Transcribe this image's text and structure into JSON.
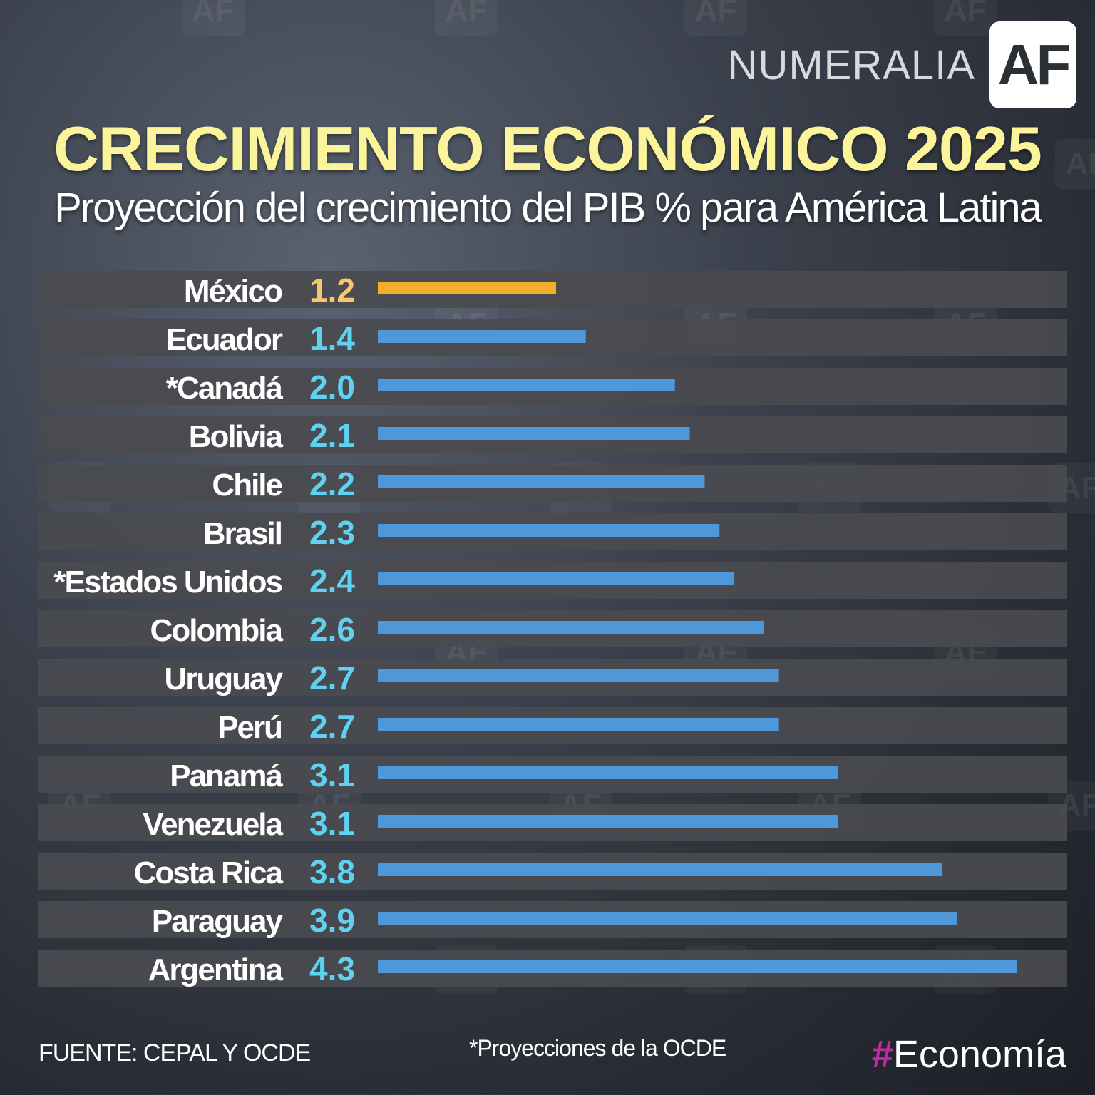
{
  "brand": {
    "name": "NUMERALIA",
    "logo_text": "AF"
  },
  "watermark_text": "AF",
  "title": "CRECIMIENTO ECONÓMICO 2025",
  "subtitle": "Proyección del crecimiento del PIB % para América Latina",
  "footer": {
    "source": "FUENTE: CEPAL Y OCDE",
    "note": "*Proyecciones de la OCDE",
    "tag_hash": "#",
    "tag_word": "Economía"
  },
  "colors": {
    "row_bg": "#4a4b50",
    "bar_default": "#4e97d8",
    "bar_highlight": "#f5ae2a",
    "value_default": "#5fd2f2",
    "value_highlight": "#f6c76b",
    "title": "#fbf49a"
  },
  "chart_data": {
    "type": "bar",
    "orientation": "horizontal",
    "title": "CRECIMIENTO ECONÓMICO 2025",
    "subtitle": "Proyección del crecimiento del PIB % para América Latina",
    "categories": [
      "México",
      "Ecuador",
      "*Canadá",
      "Bolivia",
      "Chile",
      "Brasil",
      "*Estados Unidos",
      "Colombia",
      "Uruguay",
      "Perú",
      "Panamá",
      "Venezuela",
      "Costa Rica",
      "Paraguay",
      "Argentina"
    ],
    "labels": [
      "1.2",
      "1.4",
      "2.0",
      "2.1",
      "2.2",
      "2.3",
      "2.4",
      "2.6",
      "2.7",
      "2.7",
      "3.1",
      "3.1",
      "3.8",
      "3.9",
      "4.3"
    ],
    "values": [
      1.2,
      1.4,
      2.0,
      2.1,
      2.2,
      2.3,
      2.4,
      2.6,
      2.7,
      2.7,
      3.1,
      3.1,
      3.8,
      3.9,
      4.3
    ],
    "highlight": "México",
    "xlim": [
      0,
      4.3
    ],
    "grid": false,
    "legend": "none"
  }
}
